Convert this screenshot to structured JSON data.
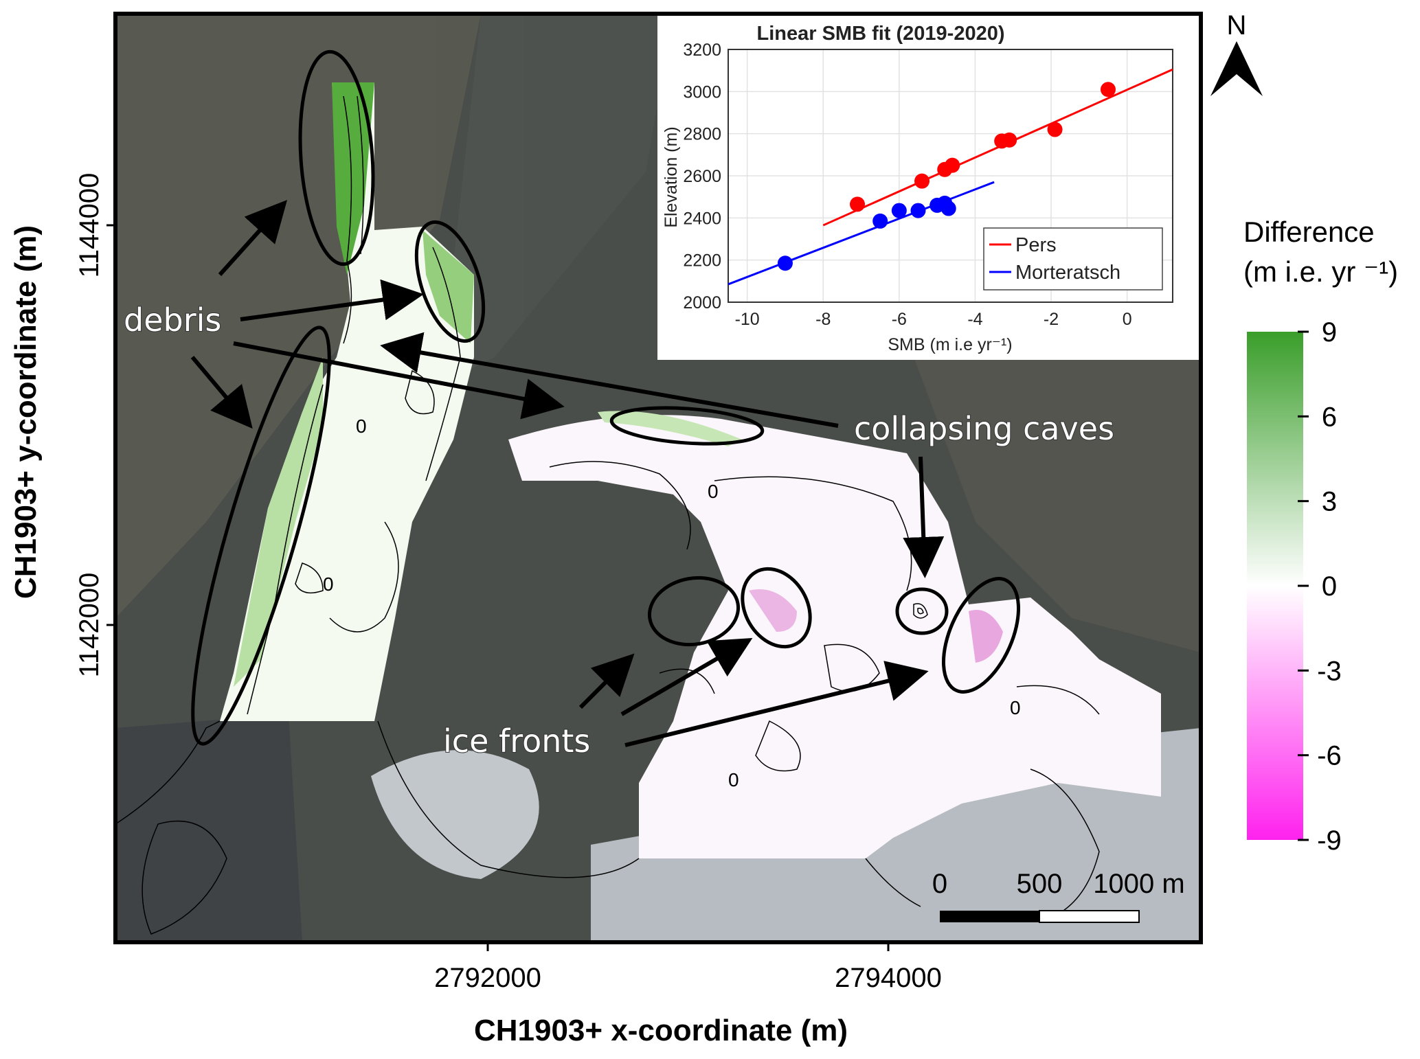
{
  "map": {
    "xlabel": "CH1903+ x-coordinate (m)",
    "ylabel": "CH1903+ y-coordinate (m)",
    "xticks": [
      "2792000",
      "2794000"
    ],
    "yticks": [
      "1144000",
      "1142000"
    ],
    "north_label": "N",
    "annotations": {
      "debris": "debris",
      "collapsing_caves": "collapsing caves",
      "ice_fronts": "ice fronts"
    },
    "contour_zero_label": "0",
    "scalebar": {
      "labels": [
        "0",
        "500",
        "1000 m"
      ]
    },
    "colors": {
      "positive": "#3a9e2a",
      "zero": "#ffffff",
      "negative": "#ff22ee",
      "frame": "#000000"
    }
  },
  "colorbar": {
    "title_line1": "Difference",
    "title_line2": "(m i.e. yr ⁻¹)",
    "ticks": [
      "9",
      "6",
      "3",
      "0",
      "-3",
      "-6",
      "-9"
    ],
    "range": [
      -9,
      9
    ]
  },
  "chart_data": {
    "type": "scatter",
    "title": "Linear SMB fit (2019-2020)",
    "xlabel": "SMB (m i.e yr⁻¹)",
    "ylabel": "Elevation (m)",
    "xlim": [
      -10.5,
      1.2
    ],
    "ylim": [
      2000,
      3200
    ],
    "xticks": [
      -10,
      -8,
      -6,
      -4,
      -2,
      0
    ],
    "yticks": [
      2000,
      2200,
      2400,
      2600,
      2800,
      3000,
      3200
    ],
    "grid": true,
    "legend_position": "bottom-right",
    "series": [
      {
        "name": "Pers",
        "color": "#ff0000",
        "x": [
          -7.1,
          -5.4,
          -4.8,
          -4.6,
          -3.3,
          -3.1,
          -1.9,
          -0.5
        ],
        "y": [
          2465,
          2575,
          2630,
          2650,
          2765,
          2770,
          2820,
          3010
        ],
        "fit": [
          [
            -8.0,
            2365
          ],
          [
            1.2,
            3105
          ]
        ]
      },
      {
        "name": "Morteratsch",
        "color": "#0000ff",
        "x": [
          -9.0,
          -6.5,
          -6.0,
          -5.5,
          -5.0,
          -4.8,
          -4.7
        ],
        "y": [
          2185,
          2385,
          2435,
          2435,
          2460,
          2470,
          2445
        ],
        "fit": [
          [
            -10.5,
            2085
          ],
          [
            -3.5,
            2570
          ]
        ]
      }
    ]
  }
}
